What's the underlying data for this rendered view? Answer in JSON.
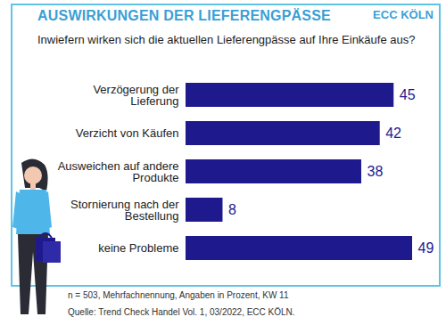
{
  "chart_data": {
    "type": "bar",
    "orientation": "horizontal",
    "title": "AUSWIRKUNGEN DER LIEFERENGPÄSSE",
    "subtitle": "Inwiefern wirken sich die aktuellen Lieferengpässe auf Ihre Einkäufe aus?",
    "annotations": [
      "ECC KÖLN",
      "n = 503, Mehrfachnennung, Angaben in Prozent, KW 11",
      "Quelle: Trend Check Handel Vol. 1, 03/2022, ECC KÖLN."
    ],
    "categories": [
      "Verzögerung der Lieferung",
      "Verzicht von Käufen",
      "Ausweichen auf andere Produkte",
      "Stornierung nach der Bestellung",
      "keine Probleme"
    ],
    "values": [
      45,
      42,
      38,
      8,
      49
    ],
    "color": "#1e1a8e",
    "data_labels": true,
    "tick_labels": "y",
    "grid": false
  }
}
